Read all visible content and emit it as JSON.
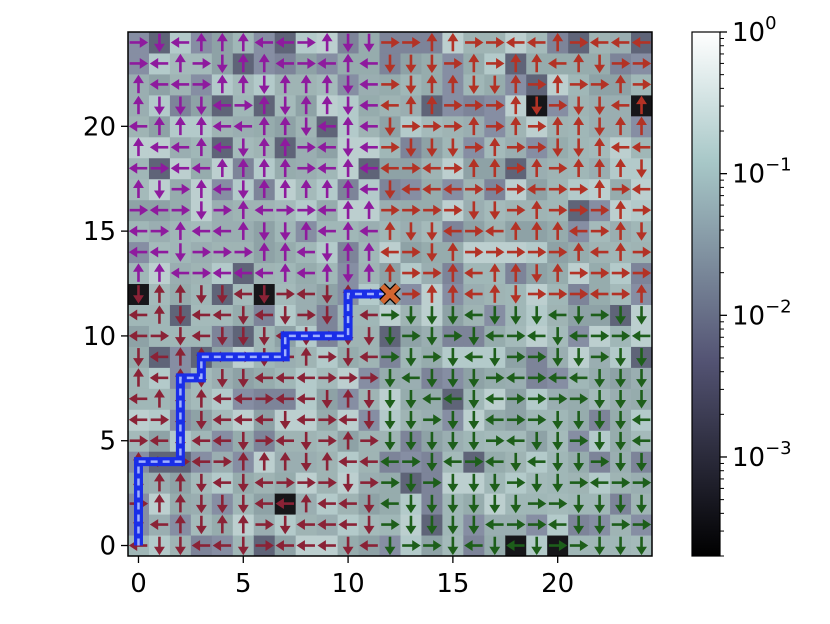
{
  "chart_data": {
    "type": "heatmap",
    "title": "",
    "xlabel": "",
    "ylabel": "",
    "grid_size": [
      25,
      25
    ],
    "xlim": [
      -0.5,
      24.5
    ],
    "ylim": [
      -0.5,
      24.5
    ],
    "x_ticks": [
      0,
      5,
      10,
      15,
      20
    ],
    "y_ticks": [
      0,
      5,
      10,
      15,
      20
    ],
    "x_tick_labels": [
      "0",
      "5",
      "10",
      "15",
      "20"
    ],
    "y_tick_labels": [
      "0",
      "5",
      "10",
      "15",
      "20"
    ],
    "colorbar": {
      "scale": "log",
      "colormap": "bone",
      "range": [
        0.0002,
        1.0
      ],
      "major_ticks": [
        {
          "base": "10",
          "exp": "0",
          "value": 1.0
        },
        {
          "base": "10",
          "exp": "−1",
          "value": 0.1
        },
        {
          "base": "10",
          "exp": "−2",
          "value": 0.01
        },
        {
          "base": "10",
          "exp": "−3",
          "value": 0.001
        }
      ]
    },
    "goal_marker": {
      "x": 12,
      "y": 12,
      "symbol": "X",
      "color": "#d2652f"
    },
    "path": {
      "color": "#1a2ee8",
      "points": [
        [
          0,
          0
        ],
        [
          0,
          4
        ],
        [
          2,
          4
        ],
        [
          2,
          8
        ],
        [
          3,
          8
        ],
        [
          3,
          9
        ],
        [
          7,
          9
        ],
        [
          7,
          10
        ],
        [
          10,
          10
        ],
        [
          10,
          12
        ],
        [
          12,
          12
        ]
      ]
    },
    "quadrant_colors": {
      "top_left": "#8e1a9e",
      "top_right": "#b33225",
      "bottom_left": "#8a2236",
      "bottom_right": "#1d5e1a"
    },
    "dark_cells": [
      [
        0,
        12
      ],
      [
        6,
        12
      ],
      [
        7,
        2
      ],
      [
        19,
        21
      ],
      [
        24,
        21
      ],
      [
        18,
        0
      ],
      [
        20,
        0
      ]
    ]
  }
}
